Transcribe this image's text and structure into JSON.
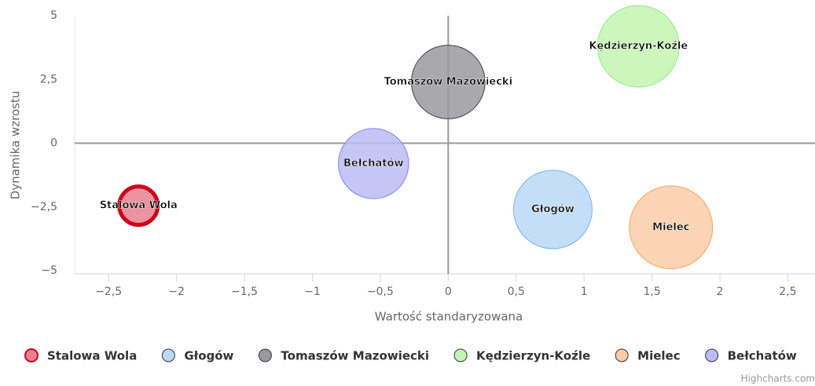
{
  "chart_data": {
    "type": "bubble",
    "x_label": "Wartość standaryzowana",
    "y_label": "Dynamika wzrostu",
    "credits": "Highcharts.com",
    "series": [
      {
        "name": "Stalowa Wola",
        "color": "#e8808f",
        "border": "#d0021b",
        "x": [
          -2.28
        ],
        "values": [
          -2.45
        ],
        "sizes": [
          6
        ]
      },
      {
        "name": "Głogów",
        "color": "#b8d8f4",
        "border": "#7cb5ec",
        "x": [
          0.77
        ],
        "values": [
          -2.6
        ],
        "sizes": [
          25
        ]
      },
      {
        "name": "Tomaszów Mazowiecki",
        "color": "#9a9a9e",
        "border": "#434348",
        "x": [
          0
        ],
        "values": [
          2.4
        ],
        "sizes": [
          22
        ]
      },
      {
        "name": "Kędzierzyn-Koźle",
        "color": "#c2f5b0",
        "border": "#90ed7d",
        "x": [
          1.4
        ],
        "values": [
          3.8
        ],
        "sizes": [
          27
        ]
      },
      {
        "name": "Mielec",
        "color": "#f9cca7",
        "border": "#f7a35c",
        "x": [
          1.64
        ],
        "values": [
          -3.3
        ],
        "sizes": [
          28
        ]
      },
      {
        "name": "Bełchatów",
        "color": "#bbbbf5",
        "border": "#8085e9",
        "x": [
          -0.55
        ],
        "values": [
          -0.8
        ],
        "sizes": [
          20
        ]
      }
    ],
    "xlim": [
      -2.75,
      2.7
    ],
    "xticks": [
      {
        "value": -2.5,
        "label": "−2,5"
      },
      {
        "value": -2,
        "label": "−2"
      },
      {
        "value": -1.5,
        "label": "−1,5"
      },
      {
        "value": -1,
        "label": "−1"
      },
      {
        "value": -0.5,
        "label": "−0,5"
      },
      0,
      {
        "value": 0.5,
        "label": "0,5"
      },
      1,
      {
        "value": 1.5,
        "label": "1,5"
      },
      2,
      {
        "value": 2.5,
        "label": "2,5"
      }
    ],
    "ylim": [
      -5,
      5
    ],
    "yticks": [
      {
        "value": -5,
        "label": "−5"
      },
      {
        "value": -2.5,
        "label": "−2,5"
      },
      0,
      {
        "value": 2.5,
        "label": "2,5"
      },
      5
    ]
  }
}
